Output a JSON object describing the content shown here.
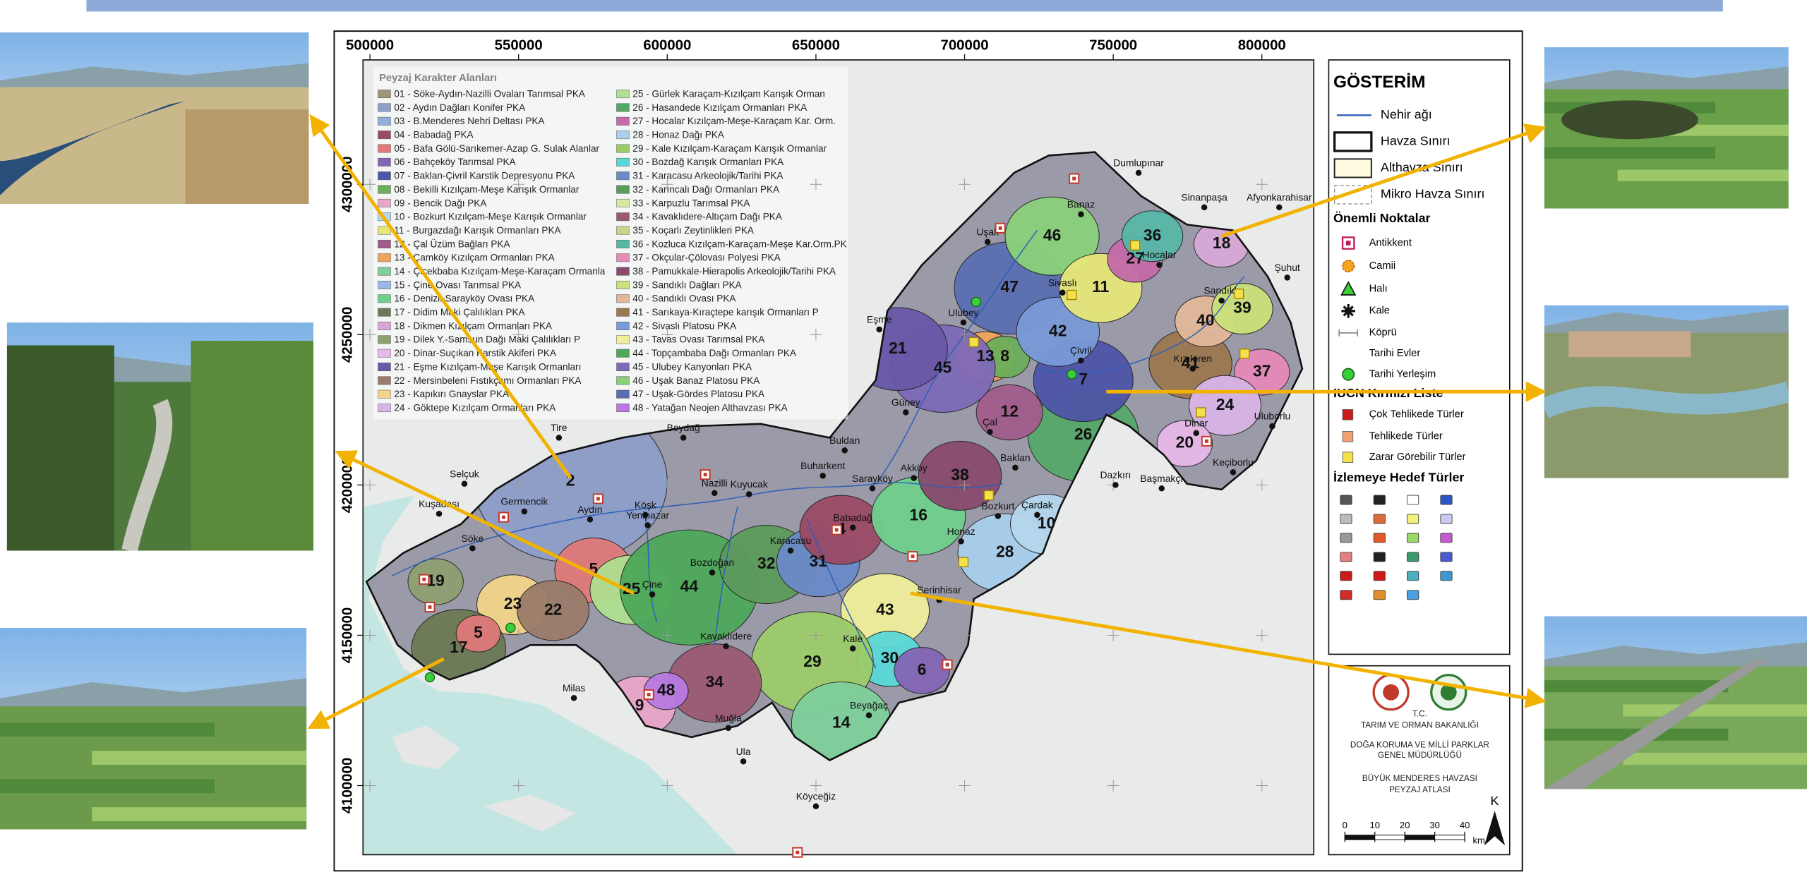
{
  "map": {
    "legend_title": "Peyzaj Karakter Alanları",
    "landscape_areas": [
      {
        "label": "01 - Söke-Aydın-Nazilli Ovaları Tarımsal PKA",
        "color": "#a3957a"
      },
      {
        "label": "02 - Aydın Dağları Konifer PKA",
        "color": "#8e9fc9"
      },
      {
        "label": "03 - B.Menderes Nehri Deltası PKA",
        "color": "#8fb0d8"
      },
      {
        "label": "04 - Babadağ PKA",
        "color": "#9a4a66"
      },
      {
        "label": "05 - Bafa Gölü-Sarıkemer-Azap G. Sulak Alanlar",
        "color": "#e07a7a"
      },
      {
        "label": "06 - Bahçeköy Tarımsal PKA",
        "color": "#8466b5"
      },
      {
        "label": "07 - Baklan-Çivril Karstik Depresyonu PKA",
        "color": "#4f55a8"
      },
      {
        "label": "08 - Bekilli Kızılçam-Meşe Karışık Ormanlar",
        "color": "#6cae5c"
      },
      {
        "label": "09 - Bencik Dağı PKA",
        "color": "#e8a6c8"
      },
      {
        "label": "10 - Bozkurt Kızılçam-Meşe Karışık Ormanlar",
        "color": "#b4d6ee"
      },
      {
        "label": "11 - Burgazdağı Karışık Ormanları PKA",
        "color": "#e6e67a"
      },
      {
        "label": "12 - Çal Üzüm Bağları PKA",
        "color": "#a25c8c"
      },
      {
        "label": "13 - Çamköy Kızılçam Ormanları PKA",
        "color": "#f0a45a"
      },
      {
        "label": "14 - Çiçekbaba Kızılçam-Meşe-Karaçam Ormanla",
        "color": "#7fcf9a"
      },
      {
        "label": "15 - Çine Ovası Tarımsal PKA",
        "color": "#9cb6e6"
      },
      {
        "label": "16 - Denizli-Sarayköy Ovası PKA",
        "color": "#6fcf8c"
      },
      {
        "label": "17 - Didim Maki Çalılıkları PKA",
        "color": "#6b7a54"
      },
      {
        "label": "18 - Dikmen Kızılçam Ormanları PKA",
        "color": "#d9a8d6"
      },
      {
        "label": "19 - Dilek Y.-Samsun Dağı Maki Çalılıkları P",
        "color": "#8da070"
      },
      {
        "label": "20 - Dinar-Suçıkan Karstik Akiferi PKA",
        "color": "#e8b8e8"
      },
      {
        "label": "21 - Eşme Kızılçam-Meşe Karışık Ormanları",
        "color": "#6a58a8"
      },
      {
        "label": "22 - Mersinbeleni Fıstıkçamı Ormanları PKA",
        "color": "#9a7c6a"
      },
      {
        "label": "23 - Kapıkırı Gnayslar PKA",
        "color": "#f2d48a"
      },
      {
        "label": "24 - Göktepe Kızılçam Ormanları PKA",
        "color": "#d8b4e6"
      },
      {
        "label": "25 - Gürlek Karaçam-Kızılçam Karışık Orman",
        "color": "#b0e090"
      },
      {
        "label": "26 - Hasandede Kızılçam Ormanları PKA",
        "color": "#56a86a"
      },
      {
        "label": "27 - Hocalar Kızılçam-Meşe-Karaçam Kar. Orm.",
        "color": "#c46aa8"
      },
      {
        "label": "28 - Honaz Dağı PKA",
        "color": "#a8cfee"
      },
      {
        "label": "29 - Kale Kızılçam-Karaçam Karışık Ormanlar",
        "color": "#9ccc6a"
      },
      {
        "label": "30 - Bozdağ Karışık Ormanları PKA",
        "color": "#5ad8d8"
      },
      {
        "label": "31 - Karacasu Arkeolojik/Tarihi PKA",
        "color": "#6a8ac8"
      },
      {
        "label": "32 - Karıncalı Dağı Ormanları PKA",
        "color": "#5c9a5c"
      },
      {
        "label": "33 - Karpuzlu Tarımsal PKA",
        "color": "#d8e8a0"
      },
      {
        "label": "34 - Kavaklıdere-Altıçam Dağı PKA",
        "color": "#9a5a72"
      },
      {
        "label": "35 - Koçarlı Zeytinlikleri PKA",
        "color": "#c8d48a"
      },
      {
        "label": "36 - Kozluca Kızılçam-Karaçam-Meşe Kar.Orm.PK",
        "color": "#58b8a8"
      },
      {
        "label": "37 - Okçular-Çölovası Polyesi PKA",
        "color": "#e68ab8"
      },
      {
        "label": "38 - Pamukkale-Hierapolis Arkeolojik/Tarihi PKA",
        "color": "#8a4a6e"
      },
      {
        "label": "39 - Sandıklı Dağları PKA",
        "color": "#cce07a"
      },
      {
        "label": "40 - Sandıklı Ovası PKA",
        "color": "#e2b89a"
      },
      {
        "label": "41 - Sarıkaya-Kıraçtepe karışık Ormanları P",
        "color": "#9a7850"
      },
      {
        "label": "42 - Sivaslı Platosu PKA",
        "color": "#7a9ad8"
      },
      {
        "label": "43 - Tavas Ovası Tarımsal PKA",
        "color": "#f0ee9a"
      },
      {
        "label": "44 - Topçambaba Dağı Ormanları PKA",
        "color": "#4ea85a"
      },
      {
        "label": "45 - Ulubey Kanyonları PKA",
        "color": "#7e6ab8"
      },
      {
        "label": "46 - Uşak Banaz Platosu PKA",
        "color": "#8ad07a"
      },
      {
        "label": "47 - Uşak-Gördes Platosu PKA",
        "color": "#5a6eb0"
      },
      {
        "label": "48 - Yatağan Neojen Althavzası PKA",
        "color": "#b87ae0"
      }
    ],
    "xticks": [
      500000,
      550000,
      600000,
      650000,
      700000,
      750000,
      800000
    ],
    "yticks": [
      4300000,
      4250000,
      4200000,
      4150000,
      4100000
    ],
    "places": [
      "Tire",
      "Beydağ",
      "Selçuk",
      "Kuşadası",
      "Germencik",
      "Aydın",
      "Köşk",
      "Nazilli",
      "Kuyucak",
      "Yenipazar",
      "Buharkent",
      "Buldan",
      "Sarayköy",
      "Akköy",
      "Honaz",
      "Bozkurt",
      "Çardak",
      "Babadağ",
      "Karacasu",
      "Bozdoğan",
      "Çine",
      "Söke",
      "Kavaklıdere",
      "Milas",
      "Muğla",
      "Ula",
      "Köyceğiz",
      "Kale",
      "Beyağaç",
      "Serinhisar",
      "Eşme",
      "Ulubey",
      "Güney",
      "Çal",
      "Baklan",
      "Çivril",
      "Sivaslı",
      "Uşak",
      "Banaz",
      "Dumlupınar",
      "Sinanpaşa",
      "Afyonkarahisar",
      "Hocalar",
      "Sandıklı",
      "Şuhut",
      "Kızılören",
      "Dinar",
      "Dazkırı",
      "Başmakçı",
      "Uluborlu",
      "Keçiborlu"
    ],
    "region_numbers": [
      "2",
      "5",
      "23",
      "22",
      "17",
      "5",
      "19",
      "25",
      "44",
      "32",
      "31",
      "4",
      "16",
      "38",
      "28",
      "10",
      "26",
      "7",
      "12",
      "13",
      "8",
      "45",
      "21",
      "47",
      "46",
      "42",
      "11",
      "27",
      "41",
      "40",
      "39",
      "37",
      "24",
      "20",
      "18",
      "36",
      "43",
      "30",
      "6",
      "29",
      "14",
      "34",
      "9",
      "48"
    ]
  },
  "legend": {
    "title": "GÖSTERİM",
    "lines": [
      "Nehir ağı",
      "Havza Sınırı",
      "Althavza Sınırı",
      "Mikro Havza Sınırı"
    ],
    "points_title": "Önemli Noktalar",
    "points": [
      "Antikkent",
      "Camii",
      "Halı",
      "Kale",
      "Köprü",
      "Tarihi Evler",
      "Tarihi Yerleşim"
    ],
    "iucn_title": "IUCN Kırmızı Liste",
    "iucn": [
      "Çok Tehlikede Türler",
      "Tehlikede Türler",
      "Zarar Görebilir Türler"
    ],
    "target_title": "İzlemeye Hedef Türler"
  },
  "logo": {
    "lines": [
      "T.C.",
      "TARIM VE ORMAN BAKANLIĞI",
      "DOĞA KORUMA VE MİLLİ PARKLAR",
      "GENEL MÜDÜRLÜĞÜ",
      "BÜYÜK MENDERES HAVZASI",
      "PEYZAJ ATLASI"
    ]
  },
  "scale_bar": {
    "ticks": [
      0,
      10,
      20,
      30,
      40
    ],
    "unit": "km",
    "north": "K"
  }
}
